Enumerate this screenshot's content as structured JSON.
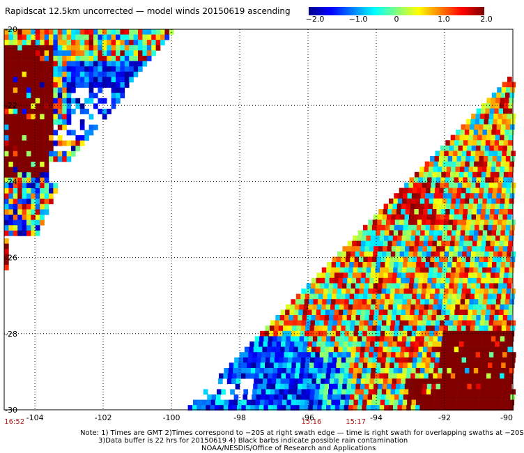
{
  "title": "Rapidscat 12.5km uncorrected — model winds 20150619 ascending",
  "colorbar": {
    "tick_labels": [
      "−2.0",
      "−1.0",
      "0",
      "1.0",
      "2.0"
    ],
    "tick_values": [
      -2.0,
      -1.0,
      0,
      1.0,
      2.0
    ],
    "colors": [
      "#00008f",
      "#0000ff",
      "#0080ff",
      "#00ffff",
      "#80ff80",
      "#ffff00",
      "#ff8000",
      "#ff0000",
      "#800000"
    ]
  },
  "map": {
    "lon_labels": [
      "-104",
      "-102",
      "-100",
      "-98",
      "-96",
      "-94",
      "-92",
      "-90"
    ],
    "lon_values": [
      -104,
      -102,
      -100,
      -98,
      -96,
      -94,
      -92,
      -90
    ],
    "lat_labels": [
      "-20",
      "-22",
      "-24",
      "-26",
      "-28",
      "-30"
    ],
    "lat_values": [
      -20,
      -22,
      -24,
      -26,
      -28,
      -30
    ],
    "lon_range": [
      -104.9,
      -90
    ],
    "lat_range": [
      -20,
      -30
    ],
    "grid": "dotted",
    "swath_times": [
      {
        "label": "16:52",
        "lon": -104.6
      },
      {
        "label": "15:16",
        "lon": -95.9
      },
      {
        "label": "15:17",
        "lon": -94.6
      }
    ]
  },
  "notes": {
    "line1": "Note: 1) Times are GMT 2)Times correspond to −20S at right swath edge — time is right swath for overlapping swaths at −20S",
    "line2": "3)Data buffer is 22 hrs for 20150619 4) Black barbs indicate possible rain contamination",
    "line3": "NOAA/NESDIS/Office of Research and Applications"
  }
}
